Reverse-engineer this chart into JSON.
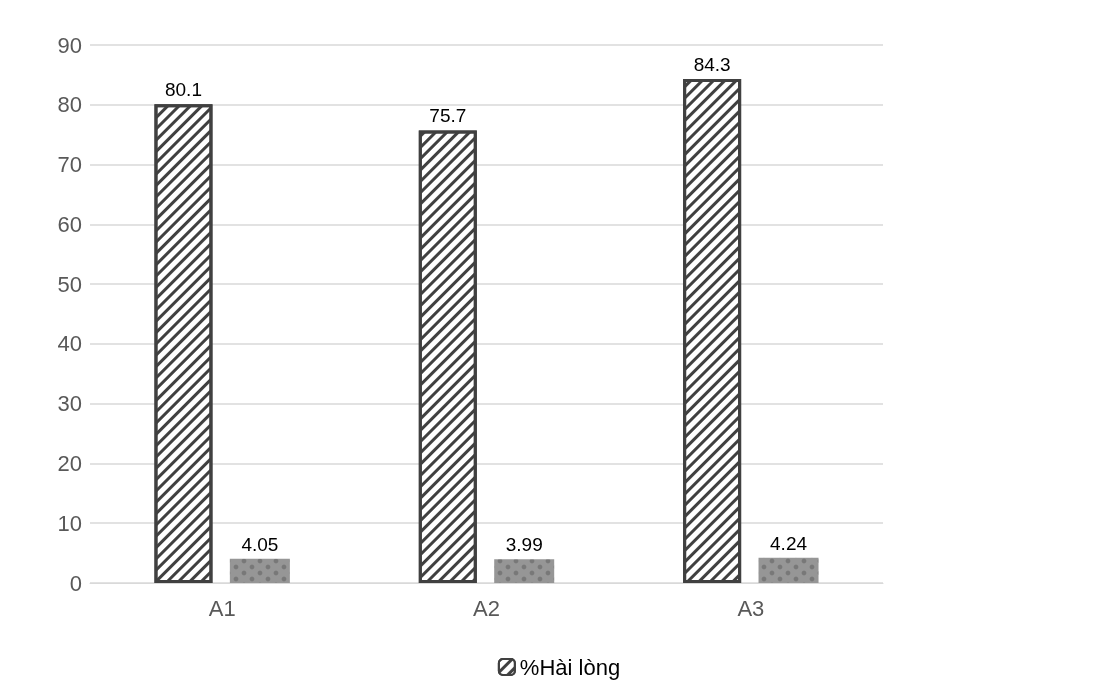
{
  "chart_data": {
    "type": "bar",
    "categories": [
      "A1",
      "A2",
      "A3"
    ],
    "series": [
      {
        "name": "%Hài lòng",
        "color": "#404040",
        "values": [
          80.1,
          75.7,
          84.3
        ]
      },
      {
        "color": "#969696",
        "values": [
          4.05,
          3.99,
          4.24
        ]
      }
    ],
    "ylim": [
      0,
      90
    ],
    "yticks": [
      0,
      10,
      20,
      30,
      40,
      50,
      60,
      70,
      80,
      90
    ],
    "grid": "y",
    "legend": "bottom",
    "data_labels": true
  }
}
